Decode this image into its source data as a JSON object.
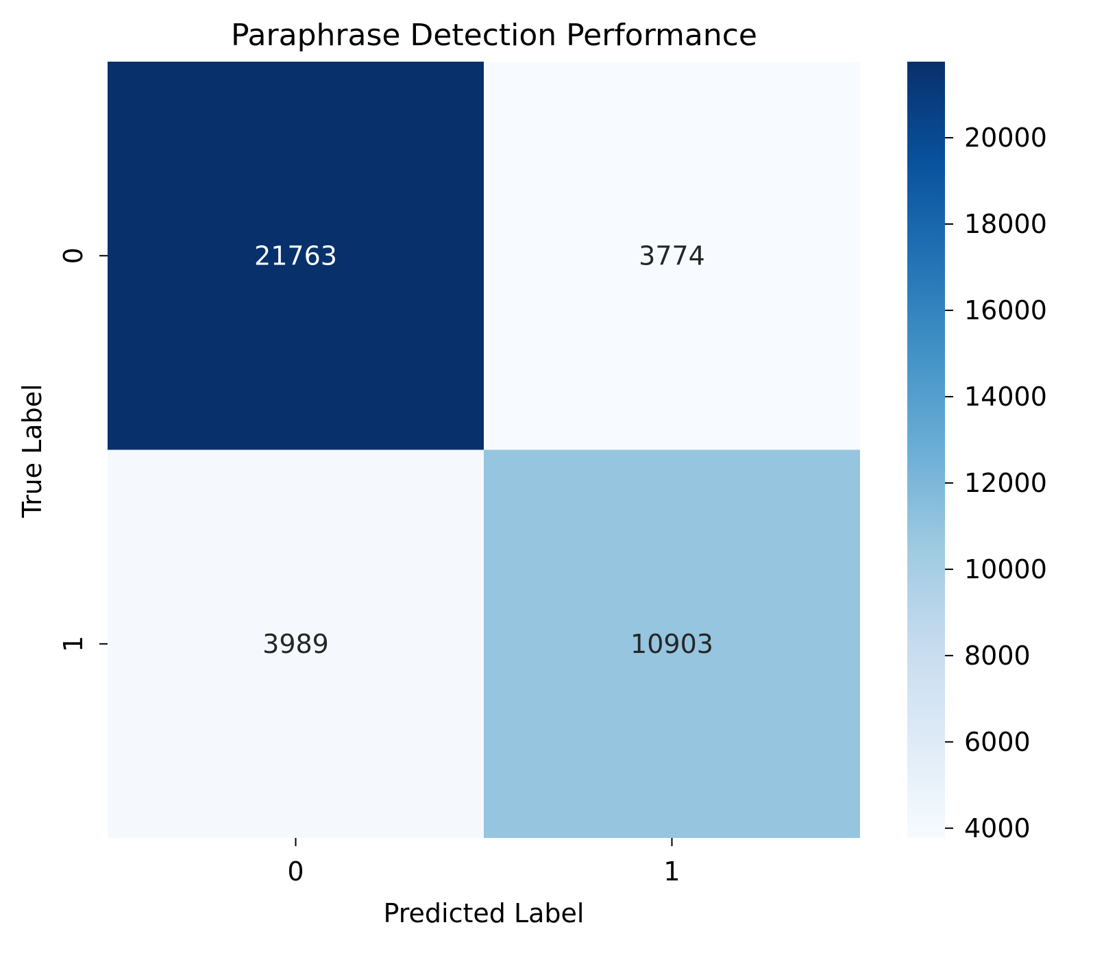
{
  "chart_data": {
    "type": "heatmap",
    "title": "Paraphrase Detection Performance",
    "xlabel": "Predicted Label",
    "ylabel": "True Label",
    "x_categories": [
      "0",
      "1"
    ],
    "y_categories": [
      "0",
      "1"
    ],
    "values": [
      [
        21763,
        3774
      ],
      [
        3989,
        10903
      ]
    ],
    "colormap": "Blues",
    "colorbar": {
      "vmin": 3774,
      "vmax": 21763,
      "ticks": [
        4000,
        6000,
        8000,
        10000,
        12000,
        14000,
        16000,
        18000,
        20000
      ],
      "tick_labels": [
        "4000",
        "6000",
        "8000",
        "10000",
        "12000",
        "14000",
        "16000",
        "18000",
        "20000"
      ]
    },
    "annotation_colors": {
      "dark_background_text": "#ffffff",
      "light_background_text": "#262626"
    }
  }
}
